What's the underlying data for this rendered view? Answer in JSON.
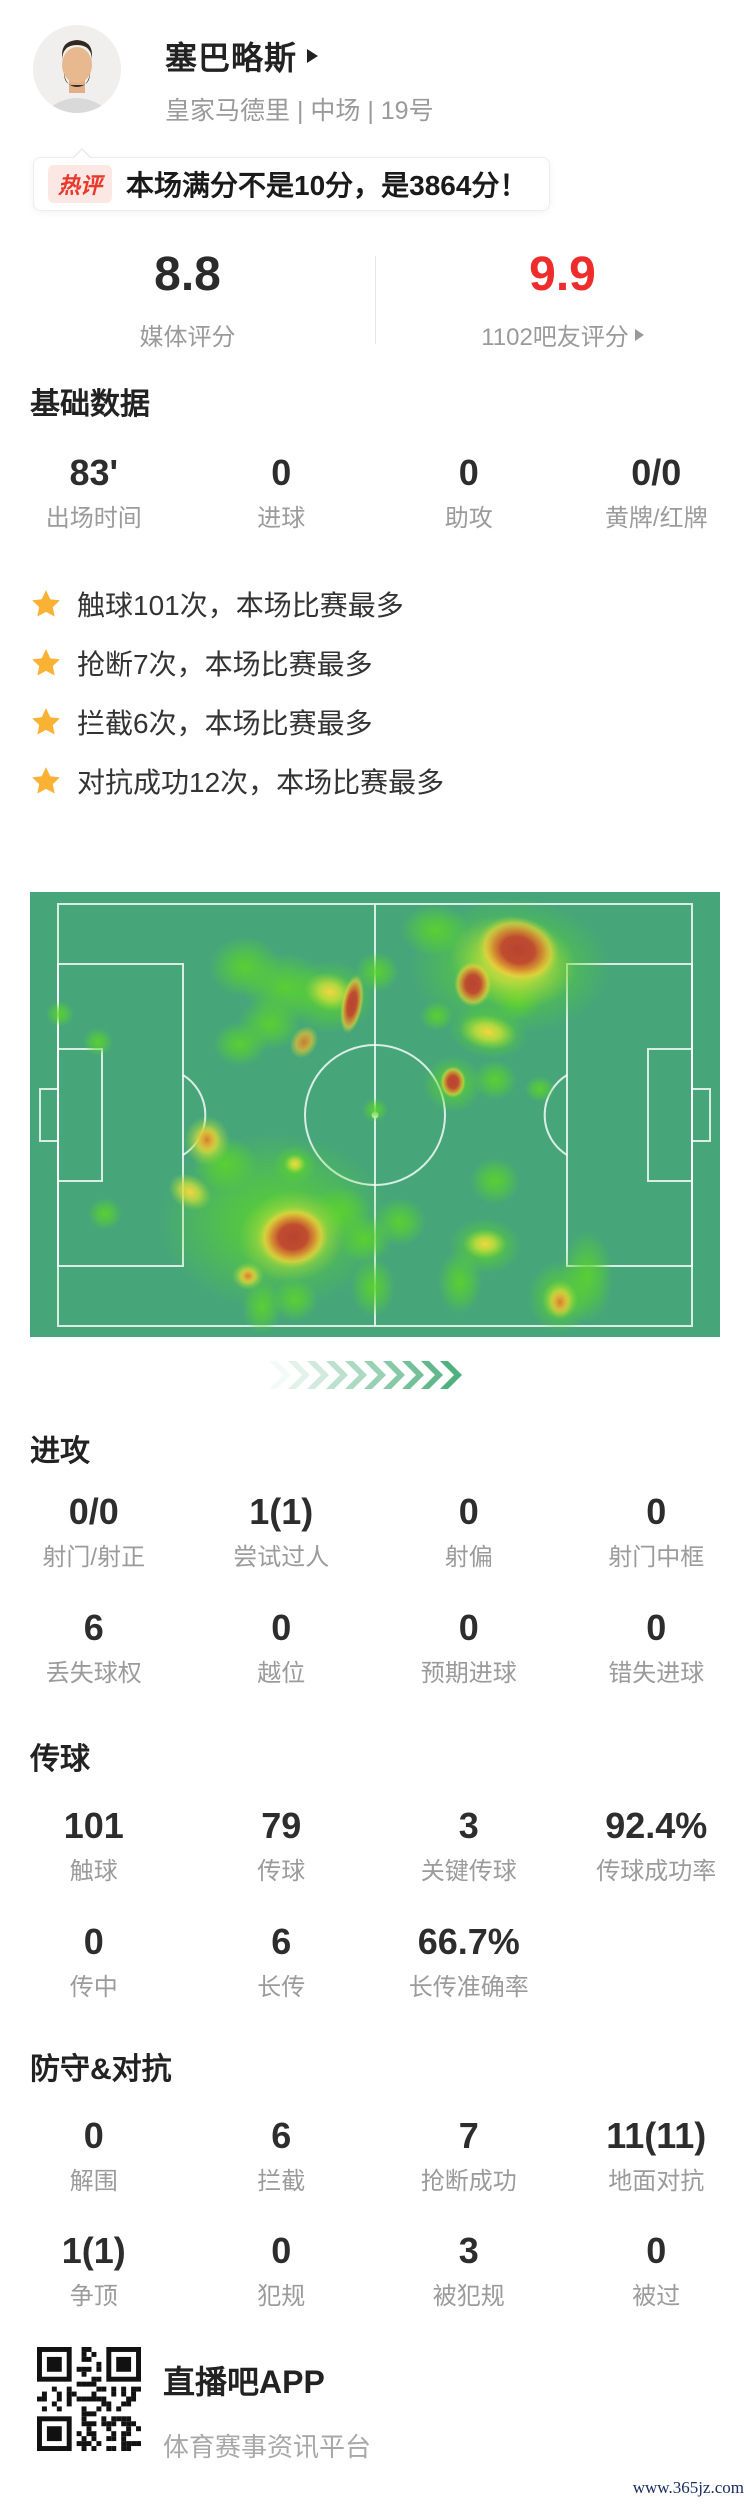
{
  "header": {
    "player_name": "塞巴略斯",
    "team_info": "皇家马德里 | 中场 | 19号"
  },
  "hot_comment": {
    "badge": "热评",
    "text": "本场满分不是10分，是3864分！"
  },
  "ratings": {
    "media": {
      "value": "8.8",
      "label": "媒体评分"
    },
    "fans": {
      "value": "9.9",
      "label": "1102吧友评分"
    }
  },
  "highlights": [
    "触球101次，本场比赛最多",
    "抢断7次，本场比赛最多",
    "拦截6次，本场比赛最多",
    "对抗成功12次，本场比赛最多"
  ],
  "sections": {
    "basic": {
      "title": "基础数据",
      "rows": [
        [
          {
            "value": "83'",
            "label": "出场时间"
          },
          {
            "value": "0",
            "label": "进球"
          },
          {
            "value": "0",
            "label": "助攻"
          },
          {
            "value": "0/0",
            "label": "黄牌/红牌"
          }
        ]
      ]
    },
    "attack": {
      "title": "进攻",
      "rows": [
        [
          {
            "value": "0/0",
            "label": "射门/射正"
          },
          {
            "value": "1(1)",
            "label": "尝试过人"
          },
          {
            "value": "0",
            "label": "射偏"
          },
          {
            "value": "0",
            "label": "射门中框"
          }
        ],
        [
          {
            "value": "6",
            "label": "丢失球权"
          },
          {
            "value": "0",
            "label": "越位"
          },
          {
            "value": "0",
            "label": "预期进球"
          },
          {
            "value": "0",
            "label": "错失进球"
          }
        ]
      ]
    },
    "passing": {
      "title": "传球",
      "rows": [
        [
          {
            "value": "101",
            "label": "触球"
          },
          {
            "value": "79",
            "label": "传球"
          },
          {
            "value": "3",
            "label": "关键传球"
          },
          {
            "value": "92.4%",
            "label": "传球成功率"
          }
        ],
        [
          {
            "value": "0",
            "label": "传中"
          },
          {
            "value": "6",
            "label": "长传"
          },
          {
            "value": "66.7%",
            "label": "长传准确率"
          },
          {
            "value": "",
            "label": ""
          }
        ]
      ]
    },
    "defense": {
      "title": "防守&对抗",
      "rows": [
        [
          {
            "value": "0",
            "label": "解围"
          },
          {
            "value": "6",
            "label": "拦截"
          },
          {
            "value": "7",
            "label": "抢断成功"
          },
          {
            "value": "11(11)",
            "label": "地面对抗"
          }
        ],
        [
          {
            "value": "1(1)",
            "label": "争顶"
          },
          {
            "value": "0",
            "label": "犯规"
          },
          {
            "value": "3",
            "label": "被犯规"
          },
          {
            "value": "0",
            "label": "被过"
          }
        ]
      ]
    }
  },
  "heatmap": {
    "pitch_color": "#46a679",
    "line_color": "rgba(255,255,255,0.8)",
    "blobs": [
      [
        480,
        75,
        100,
        68,
        0,
        "g"
      ],
      [
        405,
        38,
        34,
        26,
        0,
        "g"
      ],
      [
        347,
        80,
        22,
        20,
        0,
        "g"
      ],
      [
        487,
        107,
        24,
        22,
        0,
        "g"
      ],
      [
        215,
        75,
        36,
        30,
        0,
        "g"
      ],
      [
        255,
        95,
        42,
        34,
        0,
        "g"
      ],
      [
        300,
        105,
        46,
        36,
        0,
        "g"
      ],
      [
        240,
        132,
        32,
        26,
        0,
        "g"
      ],
      [
        210,
        152,
        27,
        22,
        0,
        "g"
      ],
      [
        30,
        122,
        14,
        13,
        0,
        "g"
      ],
      [
        68,
        150,
        15,
        14,
        0,
        "g"
      ],
      [
        75,
        322,
        17,
        16,
        0,
        "g"
      ],
      [
        345,
        218,
        13,
        12,
        0,
        "g"
      ],
      [
        407,
        124,
        17,
        15,
        0,
        "g"
      ],
      [
        458,
        140,
        40,
        26,
        10,
        "g"
      ],
      [
        423,
        192,
        30,
        28,
        0,
        "g"
      ],
      [
        465,
        188,
        22,
        20,
        0,
        "g"
      ],
      [
        510,
        197,
        15,
        13,
        0,
        "g"
      ],
      [
        245,
        330,
        115,
        88,
        0,
        "g"
      ],
      [
        195,
        272,
        32,
        28,
        0,
        "g"
      ],
      [
        265,
        273,
        22,
        20,
        0,
        "g"
      ],
      [
        310,
        320,
        30,
        26,
        0,
        "g"
      ],
      [
        335,
        347,
        27,
        24,
        0,
        "g"
      ],
      [
        343,
        395,
        22,
        30,
        0,
        "g"
      ],
      [
        370,
        330,
        26,
        24,
        0,
        "g"
      ],
      [
        455,
        354,
        36,
        28,
        0,
        "g"
      ],
      [
        430,
        390,
        22,
        32,
        0,
        "g"
      ],
      [
        465,
        289,
        25,
        23,
        0,
        "g"
      ],
      [
        557,
        385,
        26,
        46,
        0,
        "g"
      ],
      [
        530,
        405,
        32,
        36,
        0,
        "g"
      ],
      [
        232,
        415,
        20,
        27,
        0,
        "g"
      ],
      [
        265,
        408,
        23,
        21,
        0,
        "g"
      ],
      [
        483,
        70,
        64,
        46,
        10,
        "y"
      ],
      [
        300,
        100,
        26,
        19,
        15,
        "y"
      ],
      [
        262,
        344,
        54,
        46,
        -10,
        "y"
      ],
      [
        177,
        249,
        23,
        25,
        0,
        "y"
      ],
      [
        160,
        300,
        23,
        17,
        30,
        "y"
      ],
      [
        458,
        140,
        29,
        17,
        10,
        "y"
      ],
      [
        265,
        272,
        11,
        10,
        0,
        "y"
      ],
      [
        455,
        352,
        22,
        15,
        0,
        "y"
      ],
      [
        218,
        384,
        16,
        14,
        0,
        "y"
      ],
      [
        530,
        408,
        18,
        20,
        0,
        "y"
      ],
      [
        274,
        150,
        13,
        17,
        30,
        "o"
      ],
      [
        177,
        248,
        13,
        15,
        0,
        "o"
      ],
      [
        218,
        384,
        10,
        9,
        0,
        "o"
      ],
      [
        530,
        410,
        12,
        15,
        0,
        "o"
      ],
      [
        488,
        58,
        42,
        33,
        15,
        "r"
      ],
      [
        443,
        92,
        19,
        23,
        0,
        "r"
      ],
      [
        322,
        112,
        11,
        30,
        10,
        "r"
      ],
      [
        263,
        345,
        36,
        31,
        -8,
        "r"
      ],
      [
        423,
        190,
        13,
        16,
        0,
        "r"
      ]
    ]
  },
  "chevrons": {
    "count": 10,
    "color": "#4cae7c"
  },
  "colors": {
    "accent_red": "#ee2c2c",
    "star_gold": "#f9b233",
    "link_navy": "#1b2d63"
  },
  "footer": {
    "app_name": "直播吧APP",
    "app_desc": "体育赛事资讯平台",
    "watermark": "www.365jz.com"
  }
}
